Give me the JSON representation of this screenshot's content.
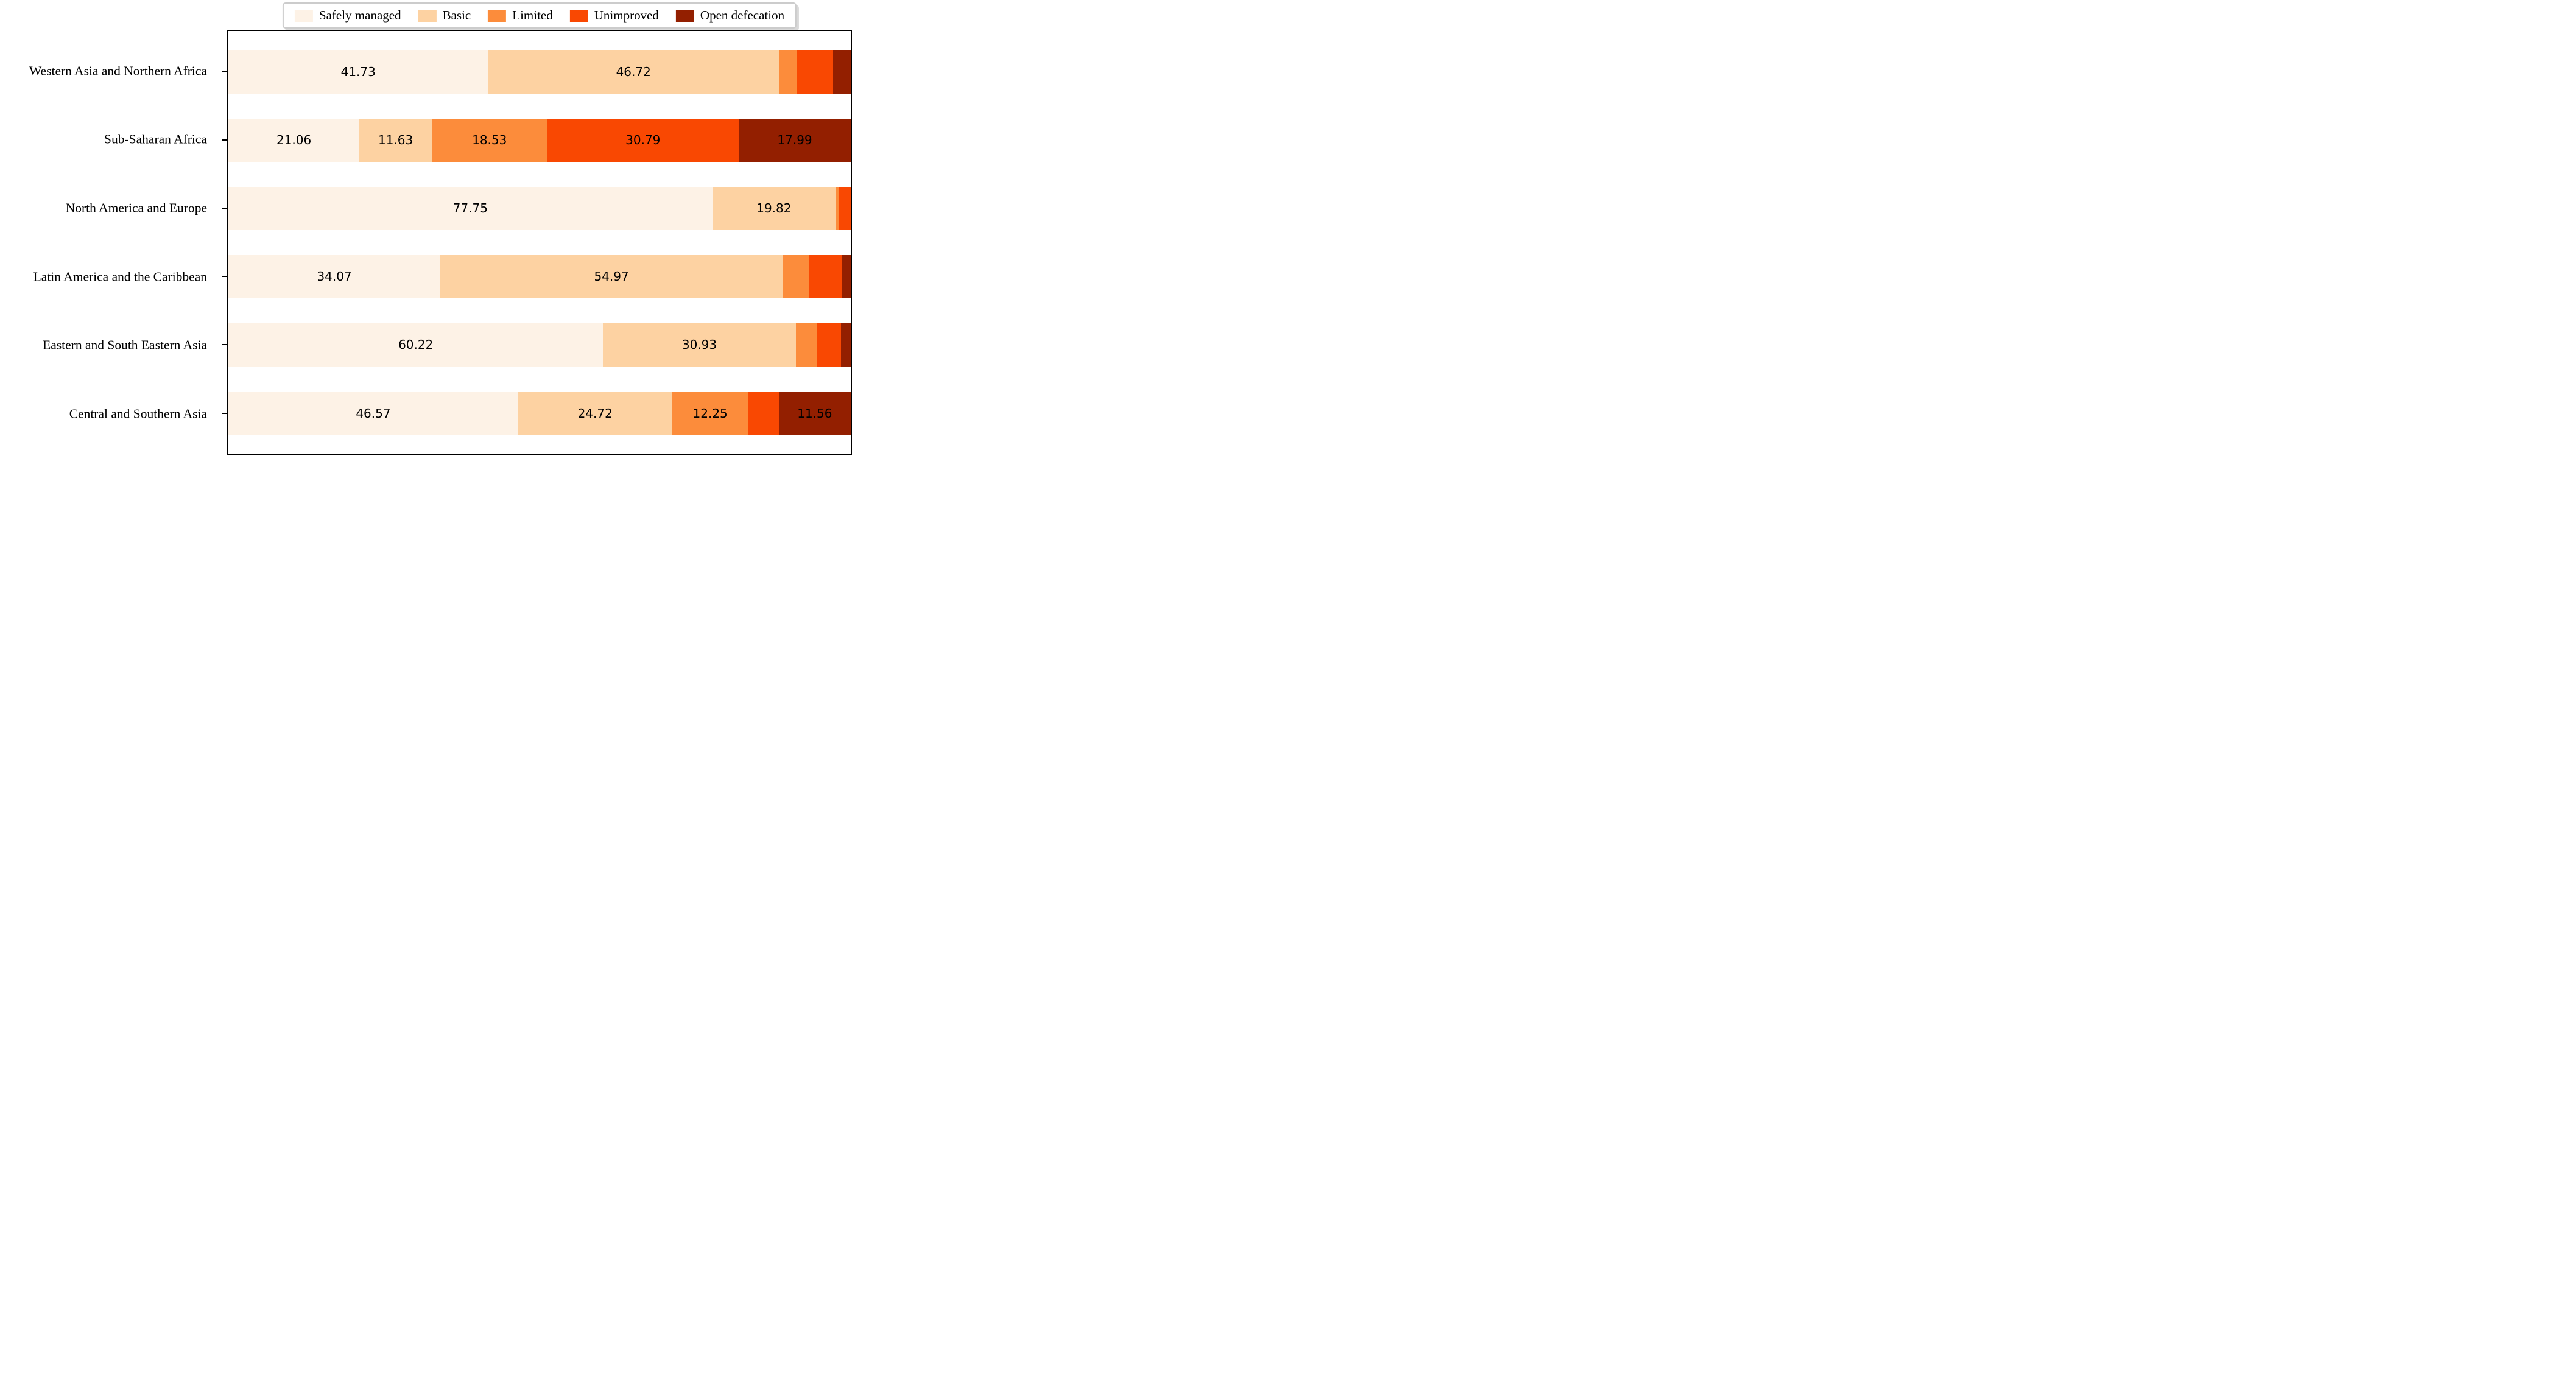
{
  "chart_data": {
    "type": "bar",
    "orientation": "horizontal",
    "stacked": true,
    "title": "",
    "xlabel": "",
    "ylabel": "",
    "xlim": [
      0,
      100
    ],
    "grid": false,
    "legend_position": "top center",
    "value_label_min_width": 10,
    "categories": [
      "Western Asia and Northern Africa",
      "Sub-Saharan Africa",
      "North America and Europe",
      "Latin America and the Caribbean",
      "Eastern and South Eastern Asia",
      "Central and Southern Asia"
    ],
    "series": [
      {
        "name": "Safely managed",
        "color": "#fdf2e6",
        "values": [
          41.73,
          21.06,
          77.75,
          34.07,
          60.22,
          46.57
        ]
      },
      {
        "name": "Basic",
        "color": "#fdd2a2",
        "values": [
          46.72,
          11.63,
          19.82,
          54.97,
          30.93,
          24.72
        ]
      },
      {
        "name": "Limited",
        "color": "#fc8c3b",
        "values": [
          2.95,
          18.53,
          0.62,
          4.25,
          3.45,
          12.25
        ]
      },
      {
        "name": "Unimproved",
        "color": "#f94802",
        "values": [
          5.8,
          30.79,
          1.81,
          5.28,
          3.8,
          4.9
        ]
      },
      {
        "name": "Open defecation",
        "color": "#931f00",
        "values": [
          2.8,
          17.99,
          0,
          1.43,
          1.6,
          11.56
        ]
      }
    ]
  },
  "style": {
    "axis_border_color": "#000000",
    "tick_color": "#000000",
    "legend_border_color": "#cccccc",
    "background_color": "#ffffff",
    "label_color": "#000000"
  },
  "layout_constants": {
    "first_bar_top_pct": 4.532,
    "row_spacing_pct": 16.126,
    "bar_height_pct": 10.258
  }
}
